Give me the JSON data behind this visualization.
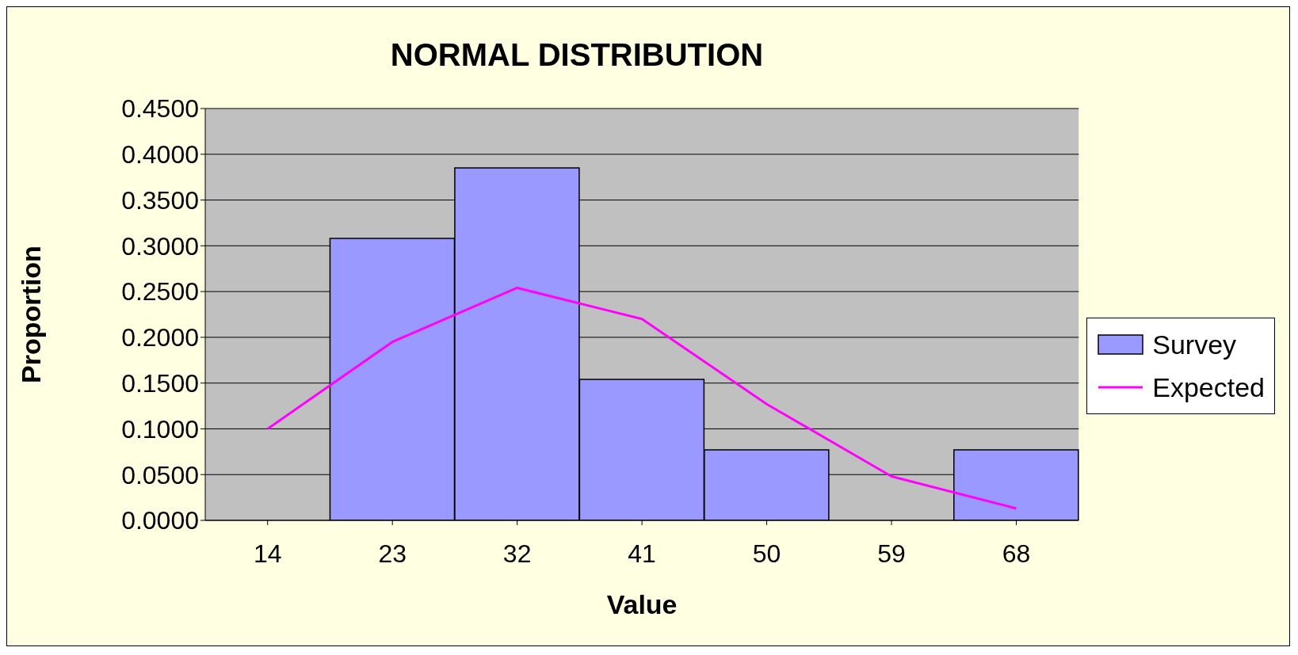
{
  "chart_data": {
    "type": "bar",
    "title": "NORMAL DISTRIBUTION",
    "xlabel": "Value",
    "ylabel": "Proportion",
    "categories": [
      "14",
      "23",
      "32",
      "41",
      "50",
      "59",
      "68"
    ],
    "series": [
      {
        "name": "Survey",
        "color": "#9999ff",
        "values": [
          0,
          0.308,
          0.385,
          0.154,
          0.077,
          0,
          0.077
        ]
      },
      {
        "name": "Expected",
        "type": "line",
        "color": "#ff00ff",
        "values": [
          0.1,
          0.195,
          0.254,
          0.22,
          0.127,
          0.048,
          0.013
        ]
      }
    ],
    "ylim": [
      0,
      0.45
    ],
    "yticks": [
      {
        "value": 0,
        "label": "0.0000"
      },
      {
        "value": 0.05,
        "label": "0.0500"
      },
      {
        "value": 0.1,
        "label": "0.1000"
      },
      {
        "value": 0.15,
        "label": "0.1500"
      },
      {
        "value": 0.2,
        "label": "0.2000"
      },
      {
        "value": 0.25,
        "label": "0.2500"
      },
      {
        "value": 0.3,
        "label": "0.3000"
      },
      {
        "value": 0.35,
        "label": "0.3500"
      },
      {
        "value": 0.4,
        "label": "0.4000"
      },
      {
        "value": 0.45,
        "label": "0.4500"
      }
    ],
    "grid": "y",
    "legend": "right",
    "marker": "none"
  }
}
